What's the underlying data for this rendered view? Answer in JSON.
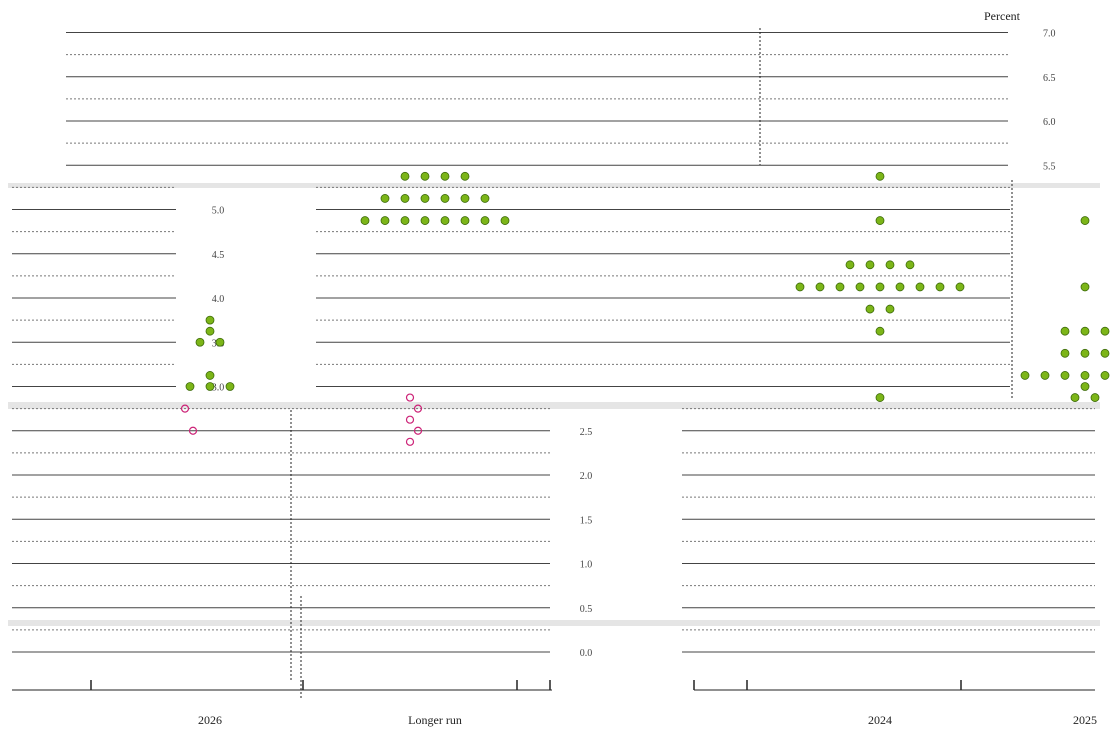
{
  "chart_data": {
    "type": "scatter",
    "subtype": "dot-plot",
    "y_unit": "Percent",
    "ylim": [
      0.0,
      7.0
    ],
    "yticks": [
      0.0,
      0.5,
      1.0,
      1.5,
      2.0,
      2.5,
      3.0,
      3.5,
      4.0,
      4.5,
      5.0,
      5.5,
      6.0,
      6.5,
      7.0
    ],
    "ytick_labels": [
      "0.0",
      "0.5",
      "1.0",
      "1.5",
      "2.0",
      "2.5",
      "3.0",
      "3.5",
      "4.0",
      "4.5",
      "5.0",
      "5.5",
      "6.0",
      "6.5",
      "7.0"
    ],
    "x_labels": [
      "2026",
      "Longer run",
      "2024",
      "2025"
    ],
    "grid": true,
    "dot_color": "#7cb518",
    "dot_outline": "#3d6b0a",
    "median_color": "#cc2277",
    "groups": [
      {
        "label": "2026",
        "dots": [
          {
            "y": 3.75,
            "count": 1
          },
          {
            "y": 3.625,
            "count": 1
          },
          {
            "y": 3.5,
            "count": 2
          },
          {
            "y": 3.125,
            "count": 1
          },
          {
            "y": 3.0,
            "count": 3
          }
        ],
        "medians": [
          2.75,
          2.5
        ]
      },
      {
        "label": "Longer run",
        "dots": [
          {
            "y": 5.375,
            "count": 4
          },
          {
            "y": 5.125,
            "count": 6
          },
          {
            "y": 4.875,
            "count": 8
          }
        ],
        "medians": [
          2.875,
          2.75,
          2.625,
          2.5,
          2.375
        ]
      },
      {
        "label": "2024",
        "dots": [
          {
            "y": 5.375,
            "count": 1
          },
          {
            "y": 4.875,
            "count": 1
          },
          {
            "y": 4.375,
            "count": 4
          },
          {
            "y": 4.125,
            "count": 9
          },
          {
            "y": 3.875,
            "count": 2
          },
          {
            "y": 3.625,
            "count": 1
          },
          {
            "y": 2.875,
            "count": 1
          }
        ],
        "medians": []
      },
      {
        "label": "2025",
        "dots": [
          {
            "y": 4.875,
            "count": 1
          },
          {
            "y": 4.125,
            "count": 1
          },
          {
            "y": 3.625,
            "count": 3
          },
          {
            "y": 3.375,
            "count": 3
          },
          {
            "y": 3.125,
            "count": 7
          },
          {
            "y": 3.0,
            "count": 1
          },
          {
            "y": 2.875,
            "count": 2
          }
        ],
        "medians": []
      }
    ]
  }
}
